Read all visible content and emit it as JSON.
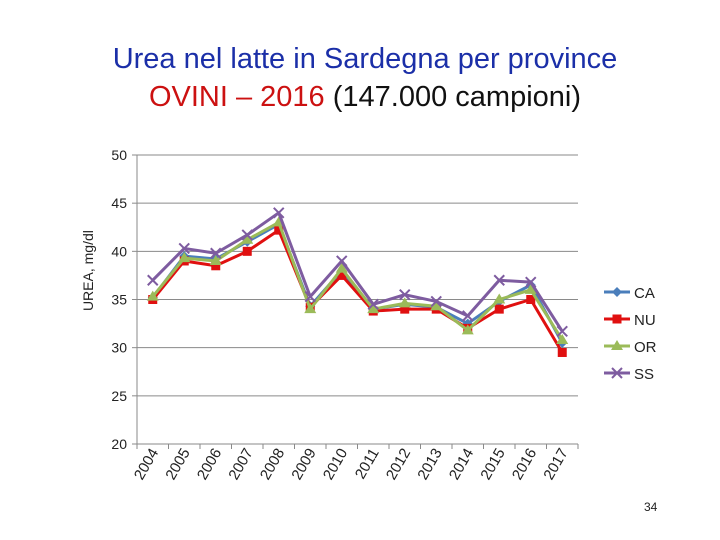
{
  "title_line1": "Urea nel latte in Sardegna per province",
  "title_line2_accent": "OVINI – 2016",
  "title_line2_rest": " (147.000 campioni)",
  "page_number": "34",
  "chart_data": {
    "type": "line",
    "title": "Urea nel latte in Sardegna per province OVINI – 2016 (147.000 campioni)",
    "ylabel": "UREA, mg/dl",
    "xlabel": "",
    "ylim": [
      20,
      50
    ],
    "yticks": [
      20,
      25,
      30,
      35,
      40,
      45,
      50
    ],
    "grid": true,
    "legend_position": "right",
    "categories": [
      "2004",
      "2005",
      "2006",
      "2007",
      "2008",
      "2009",
      "2010",
      "2011",
      "2012",
      "2013",
      "2014",
      "2015",
      "2016",
      "2017"
    ],
    "series": [
      {
        "name": "CA",
        "color": "#4a7ebb",
        "marker": "diamond",
        "values": [
          35.2,
          39.5,
          39.2,
          41.0,
          42.8,
          34.3,
          38.0,
          34.0,
          34.5,
          34.2,
          32.5,
          34.8,
          36.5,
          30.5
        ]
      },
      {
        "name": "NU",
        "color": "#e01010",
        "marker": "square",
        "values": [
          35.0,
          39.0,
          38.5,
          40.0,
          42.2,
          34.2,
          37.5,
          33.8,
          34.0,
          34.0,
          32.0,
          34.0,
          35.0,
          29.5
        ]
      },
      {
        "name": "OR",
        "color": "#9bbb59",
        "marker": "triangle",
        "values": [
          35.3,
          39.3,
          39.0,
          41.2,
          43.0,
          34.0,
          38.2,
          34.0,
          34.6,
          34.3,
          31.8,
          35.0,
          36.0,
          30.8
        ]
      },
      {
        "name": "SS",
        "color": "#7e5ca0",
        "marker": "x",
        "values": [
          37.0,
          40.3,
          39.8,
          41.7,
          44.0,
          35.3,
          39.0,
          34.5,
          35.5,
          34.8,
          33.3,
          37.0,
          36.8,
          31.7
        ]
      }
    ]
  }
}
